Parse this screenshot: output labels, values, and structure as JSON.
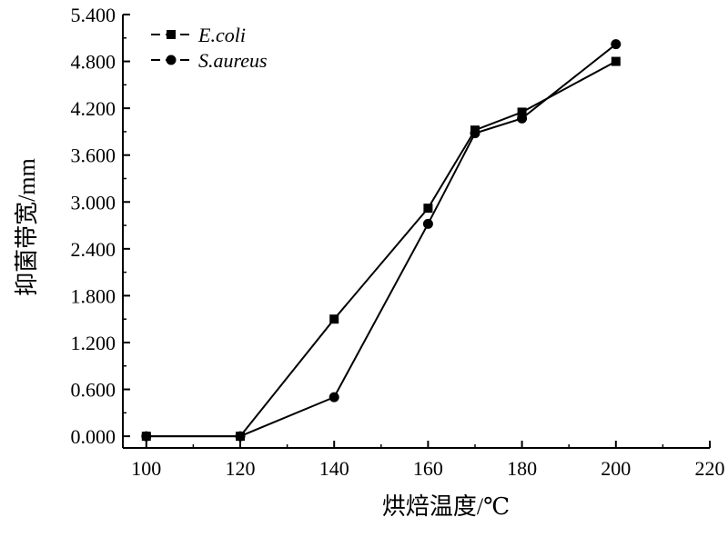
{
  "chart_data": {
    "type": "line",
    "xlabel": "烘焙温度/℃",
    "ylabel": "抑菌带宽/mm",
    "xlim": [
      95,
      220
    ],
    "ylim": [
      -0.15,
      5.4
    ],
    "x_ticks": [
      100,
      120,
      140,
      160,
      180,
      200,
      220
    ],
    "x_tick_labels": [
      "100",
      "120",
      "140",
      "160",
      "180",
      "200",
      "220"
    ],
    "y_ticks": [
      0.0,
      0.6,
      1.2,
      1.8,
      2.4,
      3.0,
      3.6,
      4.2,
      4.8,
      5.4
    ],
    "y_tick_labels": [
      "0.000",
      "0.600",
      "1.200",
      "1.800",
      "2.400",
      "3.000",
      "3.600",
      "4.200",
      "4.800",
      "5.400"
    ],
    "grid": false,
    "legend_position": "top-left",
    "series": [
      {
        "name": "E.coli",
        "marker": "square",
        "color": "#000000",
        "x": [
          100,
          120,
          140,
          160,
          170,
          180,
          200
        ],
        "y": [
          0.0,
          0.0,
          1.5,
          2.92,
          3.92,
          4.15,
          4.8
        ]
      },
      {
        "name": "S.aureus",
        "marker": "circle",
        "color": "#000000",
        "x": [
          100,
          120,
          140,
          160,
          170,
          180,
          200
        ],
        "y": [
          0.0,
          0.0,
          0.5,
          2.72,
          3.88,
          4.07,
          5.02
        ]
      }
    ]
  }
}
